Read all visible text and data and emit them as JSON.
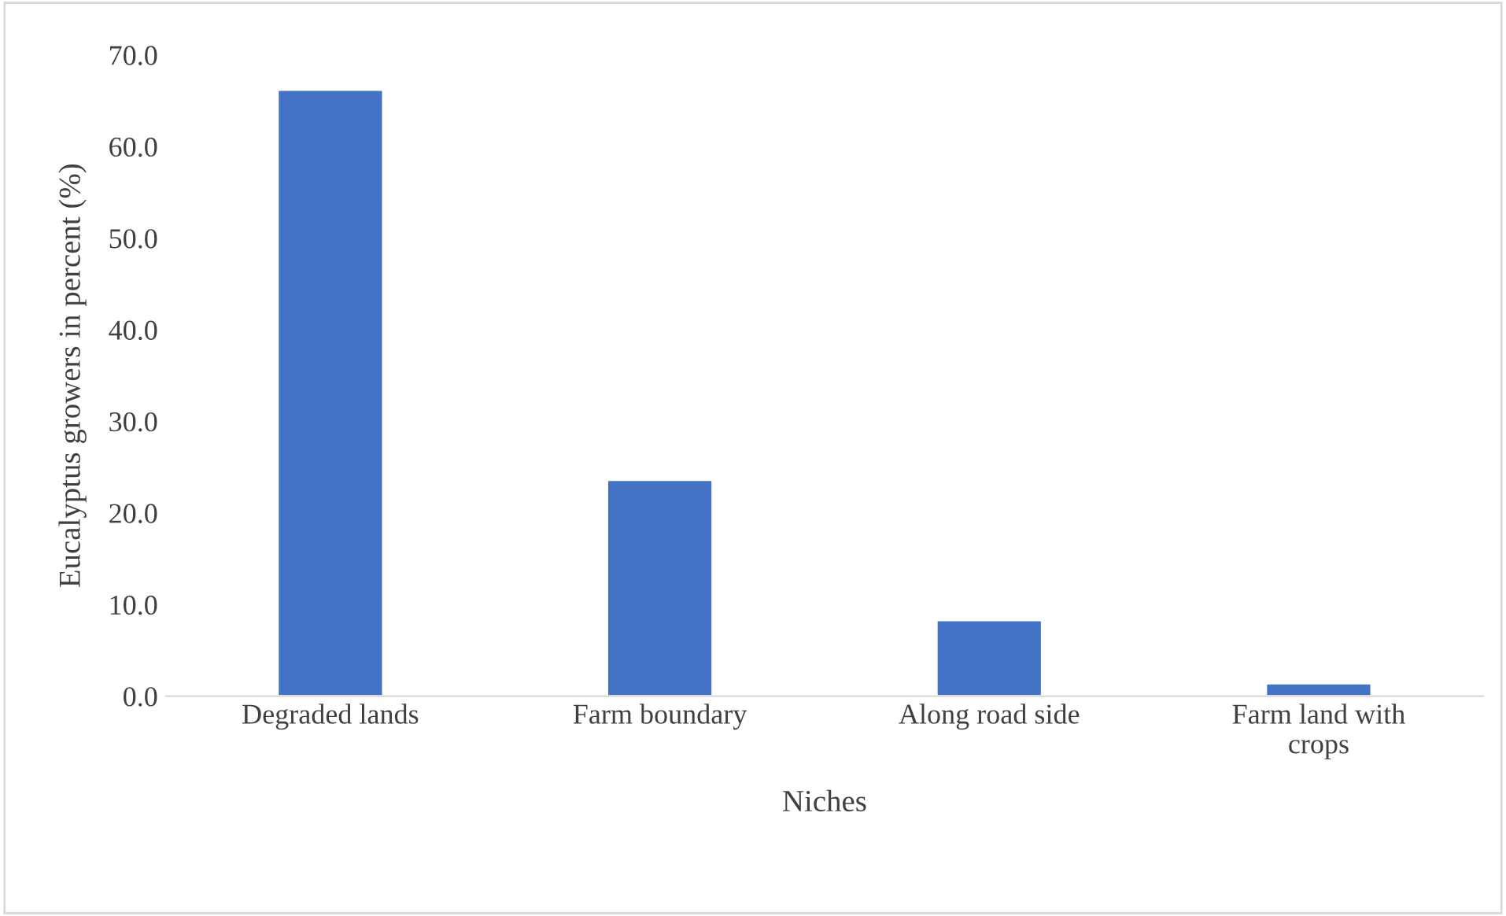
{
  "chart_data": {
    "type": "bar",
    "xlabel": "Niches",
    "ylabel": "Eucalyptus growers in percent (%)",
    "categories": [
      "Degraded lands",
      "Farm boundary",
      "Along road side",
      "Farm land with\ncrops"
    ],
    "values": [
      66.2,
      23.6,
      8.3,
      1.4
    ],
    "color": "#4472c4",
    "ylim": [
      0,
      70
    ],
    "yticks": [
      {
        "value": 0,
        "label": "0.0"
      },
      {
        "value": 10,
        "label": "10.0"
      },
      {
        "value": 20,
        "label": "20.0"
      },
      {
        "value": 30,
        "label": "30.0"
      },
      {
        "value": 40,
        "label": "40.0"
      },
      {
        "value": 50,
        "label": "50.0"
      },
      {
        "value": 60,
        "label": "60.0"
      },
      {
        "value": 70,
        "label": "70.0"
      }
    ],
    "grid": false,
    "legend": false
  }
}
